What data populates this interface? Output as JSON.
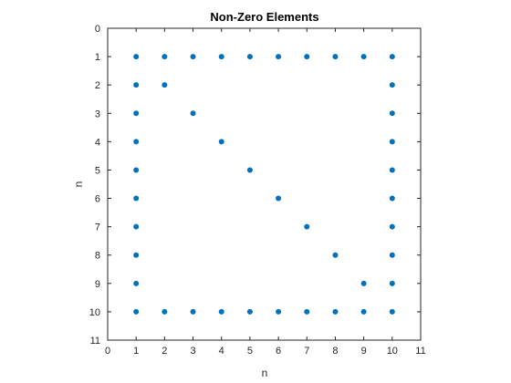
{
  "chart_data": {
    "type": "scatter",
    "title": "Non-Zero Elements",
    "xlabel": "n",
    "ylabel": "n",
    "xlim": [
      0,
      11
    ],
    "ylim": [
      0,
      11
    ],
    "y_reversed": true,
    "x_ticks": [
      0,
      1,
      2,
      3,
      4,
      5,
      6,
      7,
      8,
      9,
      10,
      11
    ],
    "y_ticks": [
      0,
      1,
      2,
      3,
      4,
      5,
      6,
      7,
      8,
      9,
      10,
      11
    ],
    "grid": false,
    "series": [
      {
        "marker_color": "#0072bd",
        "points": [
          [
            1,
            1
          ],
          [
            2,
            1
          ],
          [
            3,
            1
          ],
          [
            4,
            1
          ],
          [
            5,
            1
          ],
          [
            6,
            1
          ],
          [
            7,
            1
          ],
          [
            8,
            1
          ],
          [
            9,
            1
          ],
          [
            10,
            1
          ],
          [
            1,
            2
          ],
          [
            2,
            2
          ],
          [
            10,
            2
          ],
          [
            1,
            3
          ],
          [
            3,
            3
          ],
          [
            10,
            3
          ],
          [
            1,
            4
          ],
          [
            4,
            4
          ],
          [
            10,
            4
          ],
          [
            1,
            5
          ],
          [
            5,
            5
          ],
          [
            10,
            5
          ],
          [
            1,
            6
          ],
          [
            6,
            6
          ],
          [
            10,
            6
          ],
          [
            1,
            7
          ],
          [
            7,
            7
          ],
          [
            10,
            7
          ],
          [
            1,
            8
          ],
          [
            8,
            8
          ],
          [
            10,
            8
          ],
          [
            1,
            9
          ],
          [
            9,
            9
          ],
          [
            10,
            9
          ],
          [
            1,
            10
          ],
          [
            2,
            10
          ],
          [
            3,
            10
          ],
          [
            4,
            10
          ],
          [
            5,
            10
          ],
          [
            6,
            10
          ],
          [
            7,
            10
          ],
          [
            8,
            10
          ],
          [
            9,
            10
          ],
          [
            10,
            10
          ]
        ]
      }
    ]
  }
}
